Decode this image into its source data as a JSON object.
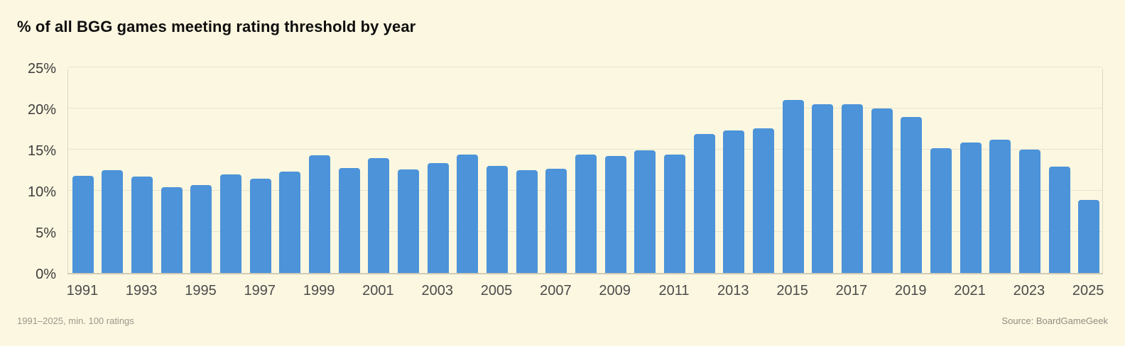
{
  "title": "% of all BGG games meeting rating threshold by year",
  "footer": {
    "left_note": "1991–2025, min. 100 ratings",
    "right_note": "Source: BoardGameGeek"
  },
  "colors": {
    "background": "#FCF7E0",
    "bar": "#4C93D9",
    "gridline": "#E8E4CE",
    "axis_line": "#CFCBB5",
    "y_label": "#3D3D3D",
    "x_label": "#4B4B4B",
    "title": "#0E0E0E",
    "footnote": "#9A978C"
  },
  "chart_data": {
    "type": "bar",
    "title": "% of all BGG games meeting rating threshold by year",
    "categories": [
      "1991",
      "1992",
      "1993",
      "1994",
      "1995",
      "1996",
      "1997",
      "1998",
      "1999",
      "2000",
      "2001",
      "2002",
      "2003",
      "2004",
      "2005",
      "2006",
      "2007",
      "2008",
      "2009",
      "2010",
      "2011",
      "2012",
      "2013",
      "2014",
      "2015",
      "2016",
      "2017",
      "2018",
      "2019",
      "2020",
      "2021",
      "2022",
      "2023",
      "2024",
      "2025"
    ],
    "values": [
      11.8,
      12.5,
      11.7,
      10.4,
      10.7,
      12.0,
      11.5,
      12.3,
      14.3,
      12.8,
      14.0,
      12.6,
      13.4,
      14.4,
      13.0,
      12.5,
      12.7,
      14.4,
      14.2,
      14.9,
      14.4,
      16.9,
      17.3,
      17.6,
      21.0,
      20.5,
      20.5,
      20.0,
      19.0,
      15.2,
      15.9,
      16.2,
      15.0,
      12.9,
      8.9
    ],
    "xlabel": "",
    "ylabel": "",
    "ylim": [
      0,
      25
    ],
    "ytick_step": 5,
    "ytick_labels": [
      "0%",
      "5%",
      "10%",
      "15%",
      "20%",
      "25%"
    ],
    "xtick_labels": [
      "1991",
      "1993",
      "1995",
      "1997",
      "1999",
      "2001",
      "2003",
      "2005",
      "2007",
      "2009",
      "2011",
      "2013",
      "2015",
      "2017",
      "2019",
      "2021",
      "2023",
      "2025"
    ],
    "grid": true,
    "legend": false,
    "bar_color": "#4C93D9"
  }
}
